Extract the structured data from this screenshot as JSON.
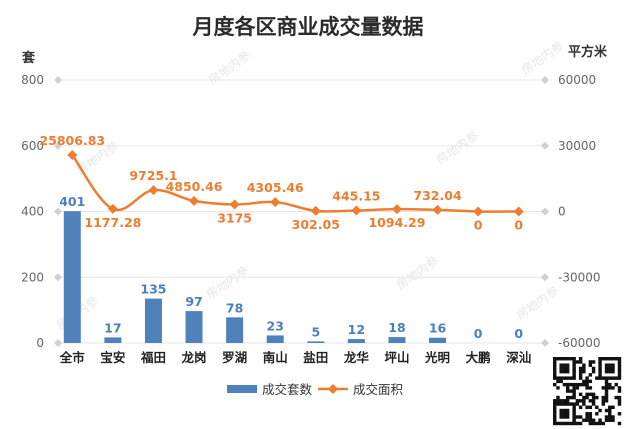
{
  "chart_data": {
    "type": "bar",
    "title": "月度各区商业成交量数据",
    "categories": [
      "全市",
      "宝安",
      "福田",
      "龙岗",
      "罗湖",
      "南山",
      "盐田",
      "龙华",
      "坪山",
      "光明",
      "大鹏",
      "深汕"
    ],
    "series": [
      {
        "name": "成交套数",
        "type": "bar",
        "axis": "left",
        "values": [
          401,
          17,
          135,
          97,
          78,
          23,
          5,
          12,
          18,
          16,
          0,
          0
        ]
      },
      {
        "name": "成交面积",
        "type": "line",
        "axis": "right",
        "values": [
          25806.83,
          1177.28,
          9725.1,
          4850.46,
          3175,
          4305.46,
          302.05,
          445.15,
          1094.29,
          732.04,
          0,
          0
        ]
      }
    ],
    "left_axis": {
      "unit": "套",
      "ylim": [
        0,
        800
      ],
      "ticks": [
        "0",
        "200",
        "400",
        "600",
        "800"
      ]
    },
    "right_axis": {
      "unit": "平方米",
      "ylim": [
        -60000,
        60000
      ],
      "ticks": [
        "-60000",
        "-30000",
        "0",
        "30000",
        "60000"
      ]
    },
    "legend_position": "bottom",
    "colors": {
      "bar": "#4f81bd",
      "line": "#ed7d31",
      "grid": "#e6e6e6"
    },
    "watermark": "房地内参",
    "line_label_text": [
      "25806.83",
      "1177.28",
      "9725.1",
      "4850.46",
      "3175",
      "4305.46",
      "302.05",
      "445.15",
      "1094.29",
      "732.04",
      "0",
      "0"
    ]
  }
}
